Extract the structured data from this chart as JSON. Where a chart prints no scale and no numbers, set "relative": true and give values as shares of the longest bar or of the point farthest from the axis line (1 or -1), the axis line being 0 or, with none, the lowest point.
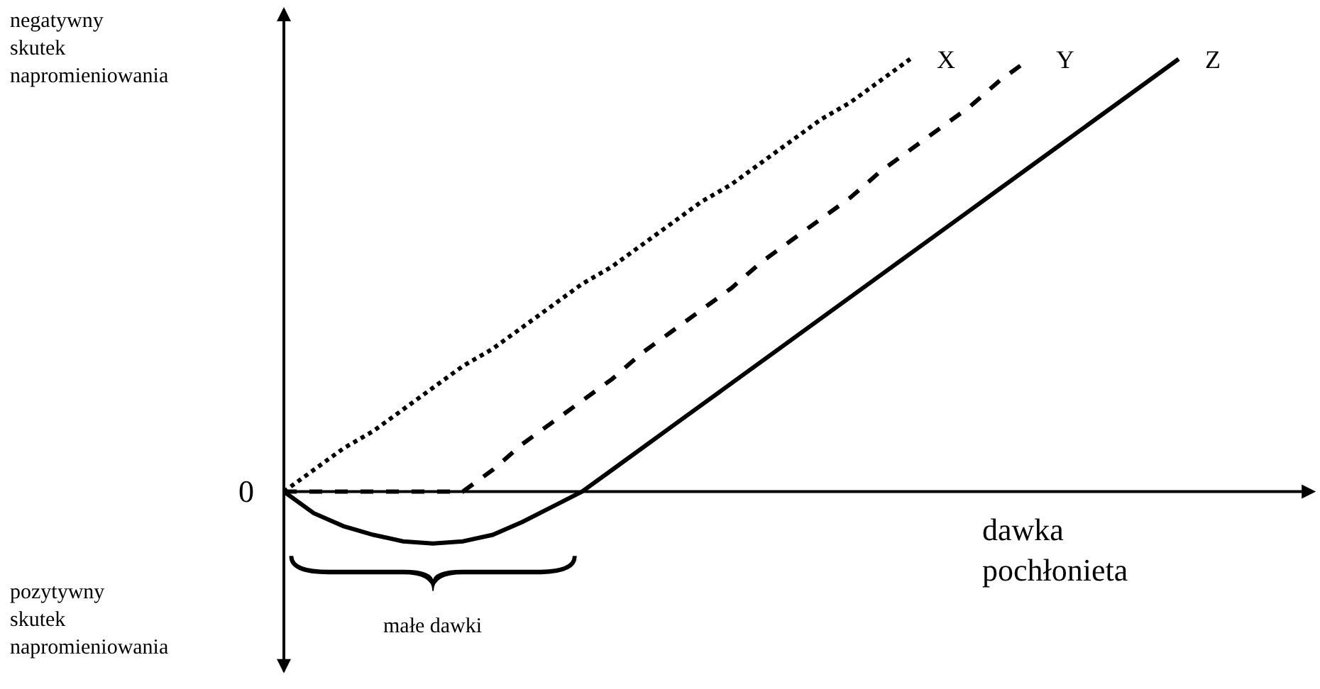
{
  "chart_data": {
    "type": "line",
    "relative": true,
    "legend": false,
    "categories": [
      null,
      null,
      null,
      null,
      null,
      null,
      null,
      null,
      null,
      null,
      null,
      null,
      null,
      null,
      null,
      null,
      null,
      null,
      null,
      null,
      null,
      null,
      null,
      null,
      null,
      null,
      null,
      null,
      null,
      null,
      null
    ],
    "series": [
      {
        "name": "X",
        "color": "#000000",
        "line_style": "dotted",
        "values": [
          0,
          0.05,
          0.1,
          0.14,
          0.19,
          0.24,
          0.29,
          0.33,
          0.38,
          0.43,
          0.48,
          0.52,
          0.57,
          0.62,
          0.67,
          0.71,
          0.76,
          0.81,
          0.86,
          0.9,
          0.95,
          1,
          null,
          null,
          null,
          null,
          null,
          null,
          null,
          null,
          null
        ]
      },
      {
        "name": "Y",
        "color": "#000000",
        "line_style": "dashed",
        "values": [
          0,
          0,
          0,
          0,
          0,
          0,
          0,
          0.05,
          0.11,
          0.16,
          0.21,
          0.26,
          0.32,
          0.37,
          0.42,
          0.47,
          0.53,
          0.58,
          0.63,
          0.68,
          0.74,
          0.79,
          0.84,
          0.89,
          0.95,
          1,
          null,
          null,
          null,
          null,
          null
        ]
      },
      {
        "name": "Z",
        "color": "#000000",
        "line_style": "solid",
        "values": [
          0,
          -0.05,
          -0.08,
          -0.1,
          -0.115,
          -0.12,
          -0.115,
          -0.1,
          -0.07,
          -0.035,
          0,
          0.05,
          0.1,
          0.15,
          0.2,
          0.25,
          0.3,
          0.35,
          0.4,
          0.45,
          0.5,
          0.55,
          0.6,
          0.65,
          0.7,
          0.75,
          0.8,
          0.85,
          0.9,
          0.95,
          1
        ]
      }
    ],
    "annotations": [
      "negatywny skutek napromieniowania",
      "pozytywny skutek napromieniowania",
      "0",
      "dawka pochłonieta",
      "małe dawki"
    ]
  }
}
